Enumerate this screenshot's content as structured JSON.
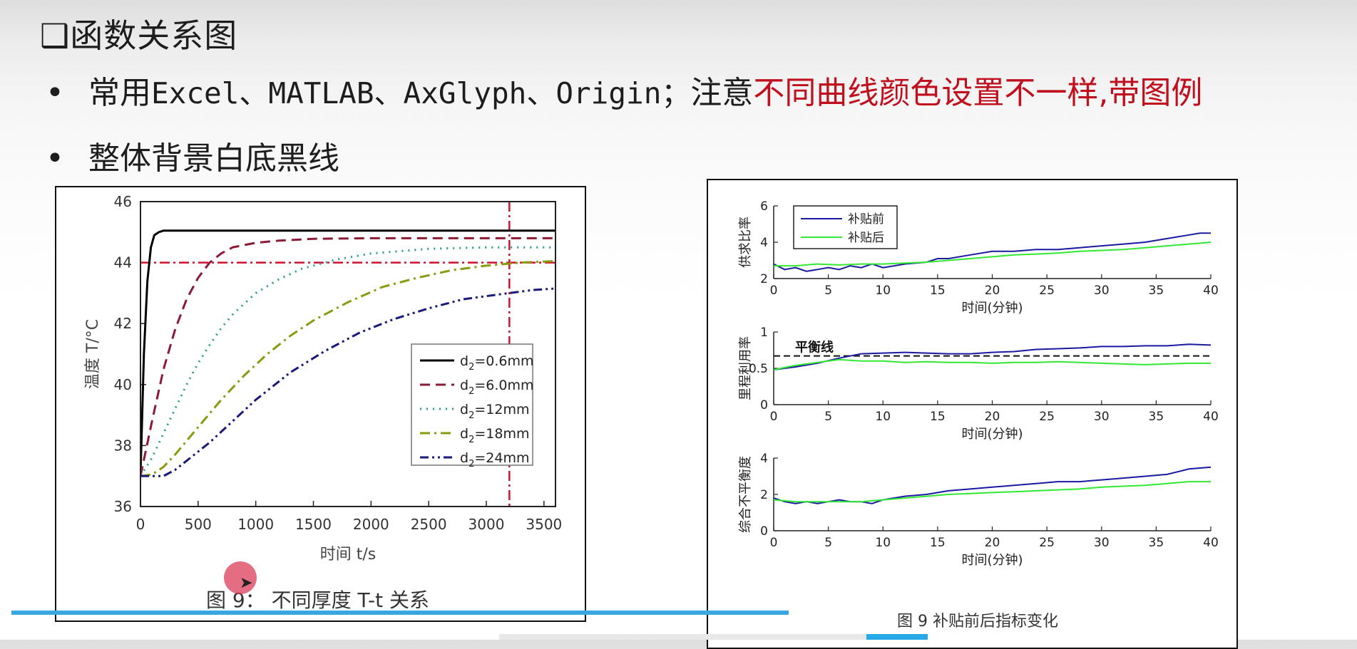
{
  "slide": {
    "title_marker": "❑",
    "title": "函数关系图",
    "bullet_symbol": "•",
    "bullet1_prefix": "常用",
    "bullet1_tools": "Excel、MATLAB、AxGlyph、Origin；",
    "bullet1_mid": "注意",
    "bullet1_red": "不同曲线颜色设置不一样,带图例",
    "bullet2": "整体背景白底黑线",
    "accent_red": "#c0101e"
  },
  "chart_data": [
    {
      "type": "line",
      "caption": "图 9：  不同厚度 T-t 关系",
      "xlabel": "时间 t/s",
      "ylabel": "温度 T/°C",
      "xlim": [
        0,
        3600
      ],
      "ylim": [
        36,
        46
      ],
      "xticks": [
        0,
        500,
        1000,
        1500,
        2000,
        2500,
        3000,
        3500
      ],
      "yticks": [
        36,
        38,
        40,
        42,
        44,
        46
      ],
      "reference_lines": {
        "horizontal_y": 44,
        "vertical_x": 3200,
        "color": "#d0102c"
      },
      "legend_position": "center-right",
      "series": [
        {
          "name": "d2=0.6mm",
          "name_main": "d",
          "name_sub": "2",
          "name_rest": "=0.6mm",
          "color": "#000000",
          "dash": "solid",
          "x": [
            0,
            30,
            60,
            90,
            120,
            160,
            200,
            260,
            320,
            400,
            500,
            800,
            1500,
            3600
          ],
          "y": [
            37.0,
            41.0,
            43.4,
            44.5,
            44.9,
            45.0,
            45.05,
            45.05,
            45.05,
            45.05,
            45.05,
            45.05,
            45.05,
            45.05
          ]
        },
        {
          "name": "d2=6.0mm",
          "name_main": "d",
          "name_sub": "2",
          "name_rest": "=6.0mm",
          "color": "#8b1a36",
          "dash": "dashed",
          "x": [
            0,
            100,
            200,
            300,
            400,
            500,
            600,
            700,
            800,
            1000,
            1200,
            1500,
            2000,
            2500,
            3000,
            3600
          ],
          "y": [
            37.0,
            38.8,
            40.5,
            41.8,
            42.8,
            43.5,
            44.0,
            44.3,
            44.5,
            44.65,
            44.72,
            44.78,
            44.8,
            44.8,
            44.8,
            44.8
          ]
        },
        {
          "name": "d2=12mm",
          "name_main": "d",
          "name_sub": "2",
          "name_rest": "=12mm",
          "color": "#2a9a8a",
          "dash": "dotted",
          "x": [
            0,
            100,
            200,
            300,
            400,
            500,
            600,
            700,
            800,
            1000,
            1200,
            1400,
            1700,
            2000,
            2500,
            3000,
            3600
          ],
          "y": [
            37.0,
            37.6,
            38.4,
            39.2,
            40.0,
            40.7,
            41.3,
            41.85,
            42.3,
            43.0,
            43.45,
            43.8,
            44.1,
            44.3,
            44.45,
            44.5,
            44.5
          ]
        },
        {
          "name": "d2=18mm",
          "name_main": "d",
          "name_sub": "2",
          "name_rest": "=18mm",
          "color": "#8a9a10",
          "dash": "dashdot",
          "x": [
            0,
            100,
            200,
            300,
            500,
            700,
            900,
            1100,
            1300,
            1500,
            1800,
            2100,
            2400,
            2700,
            3000,
            3300,
            3600
          ],
          "y": [
            37.0,
            37.05,
            37.3,
            37.7,
            38.6,
            39.5,
            40.3,
            41.0,
            41.6,
            42.1,
            42.7,
            43.2,
            43.5,
            43.75,
            43.9,
            44.0,
            44.05
          ]
        },
        {
          "name": "d2=24mm",
          "name_main": "d",
          "name_sub": "2",
          "name_rest": "=24mm",
          "color": "#1a1a7a",
          "dash": "dashdotdot",
          "x": [
            0,
            100,
            200,
            300,
            400,
            600,
            800,
            1000,
            1300,
            1600,
            1900,
            2200,
            2500,
            2800,
            3100,
            3400,
            3600
          ],
          "y": [
            37.0,
            37.0,
            37.0,
            37.2,
            37.5,
            38.1,
            38.8,
            39.5,
            40.4,
            41.1,
            41.7,
            42.15,
            42.5,
            42.8,
            42.95,
            43.1,
            43.15
          ]
        }
      ]
    },
    {
      "type": "line",
      "figure_caption": "图 9 补贴前后指标变化",
      "xticks": [
        0,
        5,
        10,
        15,
        20,
        25,
        30,
        35,
        40
      ],
      "xlim": [
        0,
        40
      ],
      "subplots": [
        {
          "xlabel": "时间(分钟)",
          "ylabel": "供求比率",
          "ylim": [
            2,
            6
          ],
          "yticks": [
            2,
            4,
            6
          ],
          "legend_position": "top-left",
          "series": [
            {
              "name": "补贴前",
              "color": "#1a1aa0",
              "x": [
                0,
                1,
                2,
                3,
                4,
                5,
                6,
                7,
                8,
                9,
                10,
                12,
                14,
                15,
                16,
                18,
                20,
                22,
                24,
                26,
                28,
                30,
                32,
                34,
                36,
                38,
                39,
                40
              ],
              "y": [
                2.8,
                2.5,
                2.6,
                2.4,
                2.5,
                2.6,
                2.5,
                2.7,
                2.6,
                2.8,
                2.6,
                2.8,
                2.9,
                3.1,
                3.1,
                3.3,
                3.5,
                3.5,
                3.6,
                3.6,
                3.7,
                3.8,
                3.9,
                4.0,
                4.2,
                4.4,
                4.5,
                4.5
              ]
            },
            {
              "name": "补贴后",
              "color": "#33e833",
              "x": [
                0,
                2,
                4,
                6,
                8,
                10,
                12,
                14,
                16,
                18,
                20,
                22,
                24,
                26,
                28,
                30,
                32,
                34,
                36,
                38,
                40
              ],
              "y": [
                2.7,
                2.7,
                2.8,
                2.75,
                2.8,
                2.8,
                2.85,
                2.9,
                3.0,
                3.1,
                3.2,
                3.3,
                3.35,
                3.4,
                3.5,
                3.55,
                3.6,
                3.7,
                3.8,
                3.9,
                4.0
              ]
            }
          ]
        },
        {
          "xlabel": "时间(分钟)",
          "ylabel": "里程利用率",
          "ylim": [
            0,
            1
          ],
          "yticks": [
            0,
            0.5,
            1
          ],
          "ytick_labels": [
            "0",
            "0.5",
            "1"
          ],
          "reference_line": {
            "y": 0.67,
            "label": "平衡线"
          },
          "series": [
            {
              "name": "补贴前",
              "color": "#1a1aa0",
              "x": [
                0,
                2,
                4,
                6,
                7,
                8,
                10,
                12,
                14,
                16,
                18,
                20,
                22,
                24,
                26,
                28,
                30,
                32,
                34,
                36,
                38,
                40
              ],
              "y": [
                0.48,
                0.52,
                0.57,
                0.64,
                0.67,
                0.7,
                0.71,
                0.72,
                0.71,
                0.7,
                0.7,
                0.72,
                0.73,
                0.76,
                0.77,
                0.78,
                0.8,
                0.8,
                0.81,
                0.81,
                0.83,
                0.82
              ]
            },
            {
              "name": "补贴后",
              "color": "#33e833",
              "x": [
                0,
                2,
                4,
                6,
                8,
                10,
                12,
                14,
                16,
                18,
                20,
                22,
                24,
                26,
                28,
                30,
                32,
                34,
                36,
                38,
                40
              ],
              "y": [
                0.48,
                0.54,
                0.58,
                0.62,
                0.6,
                0.6,
                0.58,
                0.59,
                0.58,
                0.58,
                0.57,
                0.58,
                0.58,
                0.59,
                0.58,
                0.57,
                0.56,
                0.55,
                0.56,
                0.57,
                0.57
              ]
            }
          ]
        },
        {
          "xlabel": "时间(分钟)",
          "ylabel": "综合不平衡度",
          "ylim": [
            0,
            4
          ],
          "yticks": [
            0,
            2,
            4
          ],
          "series": [
            {
              "name": "补贴前",
              "color": "#1a1aa0",
              "x": [
                0,
                1,
                2,
                3,
                4,
                5,
                6,
                7,
                8,
                9,
                10,
                12,
                14,
                16,
                18,
                20,
                22,
                24,
                26,
                28,
                30,
                32,
                34,
                36,
                38,
                40
              ],
              "y": [
                1.8,
                1.6,
                1.5,
                1.6,
                1.5,
                1.6,
                1.7,
                1.6,
                1.6,
                1.5,
                1.7,
                1.9,
                2.0,
                2.2,
                2.3,
                2.4,
                2.5,
                2.6,
                2.7,
                2.7,
                2.8,
                2.9,
                3.0,
                3.1,
                3.4,
                3.5
              ]
            },
            {
              "name": "补贴后",
              "color": "#33e833",
              "x": [
                0,
                2,
                4,
                6,
                8,
                10,
                12,
                14,
                16,
                18,
                20,
                22,
                24,
                26,
                28,
                30,
                32,
                34,
                36,
                38,
                40
              ],
              "y": [
                1.7,
                1.6,
                1.6,
                1.6,
                1.6,
                1.7,
                1.8,
                1.9,
                2.0,
                2.05,
                2.1,
                2.15,
                2.2,
                2.25,
                2.3,
                2.4,
                2.45,
                2.5,
                2.6,
                2.7,
                2.7
              ]
            }
          ]
        }
      ]
    }
  ]
}
